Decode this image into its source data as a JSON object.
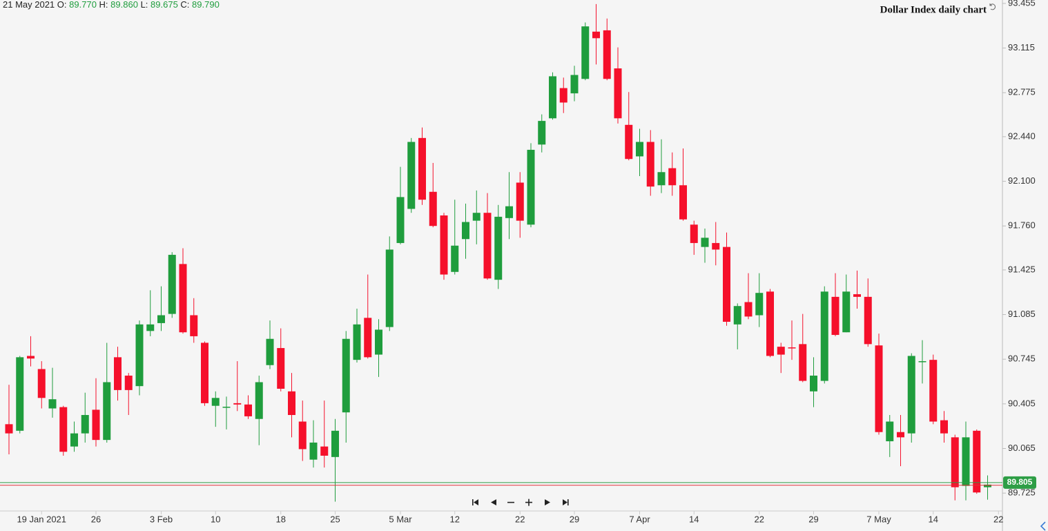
{
  "chart_data": {
    "type": "candlestick",
    "title": "Dollar Index daily chart",
    "header": {
      "date": "21 May 2021",
      "fields": [
        {
          "label": "O:",
          "value": "89.770"
        },
        {
          "label": "H:",
          "value": "89.860"
        },
        {
          "label": "L:",
          "value": "89.675"
        },
        {
          "label": "C:",
          "value": "89.790"
        }
      ]
    },
    "categories": [
      null,
      null,
      null,
      "19 Jan 2021",
      null,
      null,
      null,
      null,
      "26",
      null,
      null,
      null,
      null,
      null,
      "3 Feb",
      null,
      null,
      null,
      null,
      "10",
      null,
      null,
      null,
      null,
      null,
      "18",
      null,
      null,
      null,
      null,
      "25",
      null,
      null,
      null,
      null,
      null,
      "5 Mar",
      null,
      null,
      null,
      null,
      "12",
      null,
      null,
      null,
      null,
      null,
      "22",
      null,
      null,
      null,
      null,
      "29",
      null,
      null,
      null,
      null,
      null,
      "7 Apr",
      null,
      null,
      null,
      null,
      "14",
      null,
      null,
      null,
      null,
      null,
      "22",
      null,
      null,
      null,
      null,
      "29",
      null,
      null,
      null,
      null,
      null,
      "7 May",
      null,
      null,
      null,
      null,
      "14",
      null,
      null,
      null,
      null,
      null,
      "22"
    ],
    "open": [
      90.25,
      90.2,
      90.77,
      90.67,
      90.37,
      90.38,
      90.08,
      90.18,
      90.36,
      90.13,
      90.76,
      90.62,
      90.54,
      90.96,
      91.02,
      91.09,
      91.47,
      91.08,
      90.87,
      90.39,
      90.378,
      90.41,
      90.4,
      90.29,
      90.7,
      90.83,
      90.5,
      90.27,
      89.98,
      90.08,
      90.0,
      90.34,
      90.74,
      91.06,
      90.78,
      90.99,
      91.63,
      91.89,
      92.43,
      92.02,
      91.84,
      91.41,
      91.66,
      91.8,
      91.86,
      91.35,
      91.82,
      92.09,
      91.77,
      92.38,
      92.58,
      92.81,
      92.77,
      92.88,
      93.24,
      93.25,
      92.96,
      92.53,
      92.29,
      92.4,
      92.07,
      92.2,
      92.07,
      91.77,
      91.6,
      91.63,
      91.6,
      91.01,
      91.18,
      91.08,
      91.26,
      90.84,
      90.835,
      90.86,
      90.5,
      90.58,
      91.22,
      90.95,
      91.24,
      91.22,
      90.85,
      90.12,
      90.19,
      90.18,
      90.725,
      90.74,
      90.28,
      90.15,
      89.78,
      90.2,
      89.77,
      null
    ],
    "high": [
      90.55,
      90.77,
      90.92,
      90.73,
      90.68,
      90.39,
      90.27,
      90.49,
      90.6,
      90.87,
      90.84,
      90.64,
      91.04,
      91.27,
      91.3,
      91.56,
      91.59,
      91.21,
      90.88,
      90.5,
      90.46,
      90.73,
      90.47,
      90.62,
      91.04,
      90.98,
      90.64,
      90.43,
      90.28,
      90.43,
      90.29,
      90.96,
      91.13,
      91.39,
      91.05,
      91.68,
      92.21,
      92.43,
      92.51,
      92.24,
      91.86,
      91.96,
      91.93,
      92.03,
      92.01,
      91.92,
      92.17,
      92.17,
      92.39,
      92.61,
      92.93,
      92.89,
      92.98,
      93.31,
      93.45,
      93.34,
      93.12,
      92.78,
      92.5,
      92.49,
      92.42,
      92.32,
      92.35,
      91.8,
      91.74,
      91.79,
      91.71,
      91.17,
      91.4,
      91.4,
      91.28,
      90.87,
      91.04,
      91.09,
      90.76,
      91.3,
      91.4,
      91.39,
      91.42,
      91.36,
      90.94,
      90.32,
      90.32,
      90.79,
      90.89,
      90.78,
      90.35,
      90.17,
      90.27,
      90.21,
      89.86,
      null
    ],
    "low": [
      90.02,
      90.18,
      90.69,
      90.37,
      90.3,
      90.01,
      90.04,
      90.11,
      90.08,
      90.11,
      90.43,
      90.32,
      90.47,
      90.92,
      90.96,
      91.06,
      90.94,
      90.87,
      90.39,
      90.23,
      90.21,
      90.35,
      90.29,
      90.09,
      90.67,
      90.5,
      90.15,
      89.97,
      89.92,
      89.92,
      89.66,
      90.11,
      90.72,
      90.75,
      90.61,
      90.96,
      91.62,
      91.86,
      91.92,
      91.75,
      91.35,
      91.39,
      91.51,
      91.62,
      91.35,
      91.28,
      91.66,
      91.67,
      91.75,
      92.32,
      92.57,
      92.62,
      92.71,
      92.87,
      92.99,
      92.87,
      92.54,
      92.26,
      92.14,
      91.99,
      92.01,
      91.99,
      91.8,
      91.54,
      91.48,
      91.46,
      91.0,
      90.82,
      91.05,
      90.99,
      90.76,
      90.64,
      90.74,
      90.57,
      90.38,
      90.56,
      90.92,
      90.95,
      91.13,
      90.84,
      90.17,
      90.0,
      89.93,
      90.11,
      90.56,
      90.25,
      90.11,
      89.67,
      89.67,
      89.72,
      89.675,
      null
    ],
    "close": [
      90.18,
      90.76,
      90.75,
      90.45,
      90.44,
      90.04,
      90.18,
      90.32,
      90.13,
      90.57,
      90.51,
      90.51,
      91.01,
      91.01,
      91.08,
      91.54,
      90.95,
      90.92,
      90.41,
      90.45,
      90.383,
      90.4,
      90.31,
      90.57,
      90.9,
      90.52,
      90.32,
      90.06,
      90.11,
      90.01,
      90.2,
      90.9,
      91.01,
      90.76,
      90.97,
      91.58,
      91.98,
      92.4,
      91.96,
      91.76,
      91.39,
      91.61,
      91.79,
      91.86,
      91.36,
      91.83,
      91.91,
      91.8,
      92.34,
      92.56,
      92.9,
      92.7,
      92.91,
      93.28,
      93.19,
      92.88,
      92.58,
      92.27,
      92.4,
      92.06,
      92.17,
      92.07,
      91.81,
      91.63,
      91.67,
      91.58,
      91.03,
      91.15,
      91.07,
      91.25,
      90.77,
      90.78,
      90.83,
      90.58,
      90.62,
      91.26,
      90.93,
      91.26,
      91.22,
      90.86,
      90.19,
      90.27,
      90.15,
      90.77,
      90.73,
      90.27,
      90.18,
      89.77,
      90.15,
      89.73,
      89.79,
      null
    ],
    "up_color": "#1f9d3d",
    "down_color": "#f5102b",
    "ylim": [
      89.589,
      93.481
    ],
    "yticks": [
      93.455,
      93.115,
      92.775,
      {
        "value": 92.44,
        "label": "92.440"
      },
      {
        "value": 92.1,
        "label": "92.100"
      },
      {
        "value": 91.76,
        "label": "91.760"
      },
      91.425,
      91.085,
      90.745,
      90.405,
      90.065,
      89.725
    ],
    "price_lines": [
      {
        "value": 89.805,
        "label": "89.805",
        "color": "#2e9e46"
      },
      {
        "value": 89.785,
        "color": "#e0303a"
      }
    ]
  }
}
